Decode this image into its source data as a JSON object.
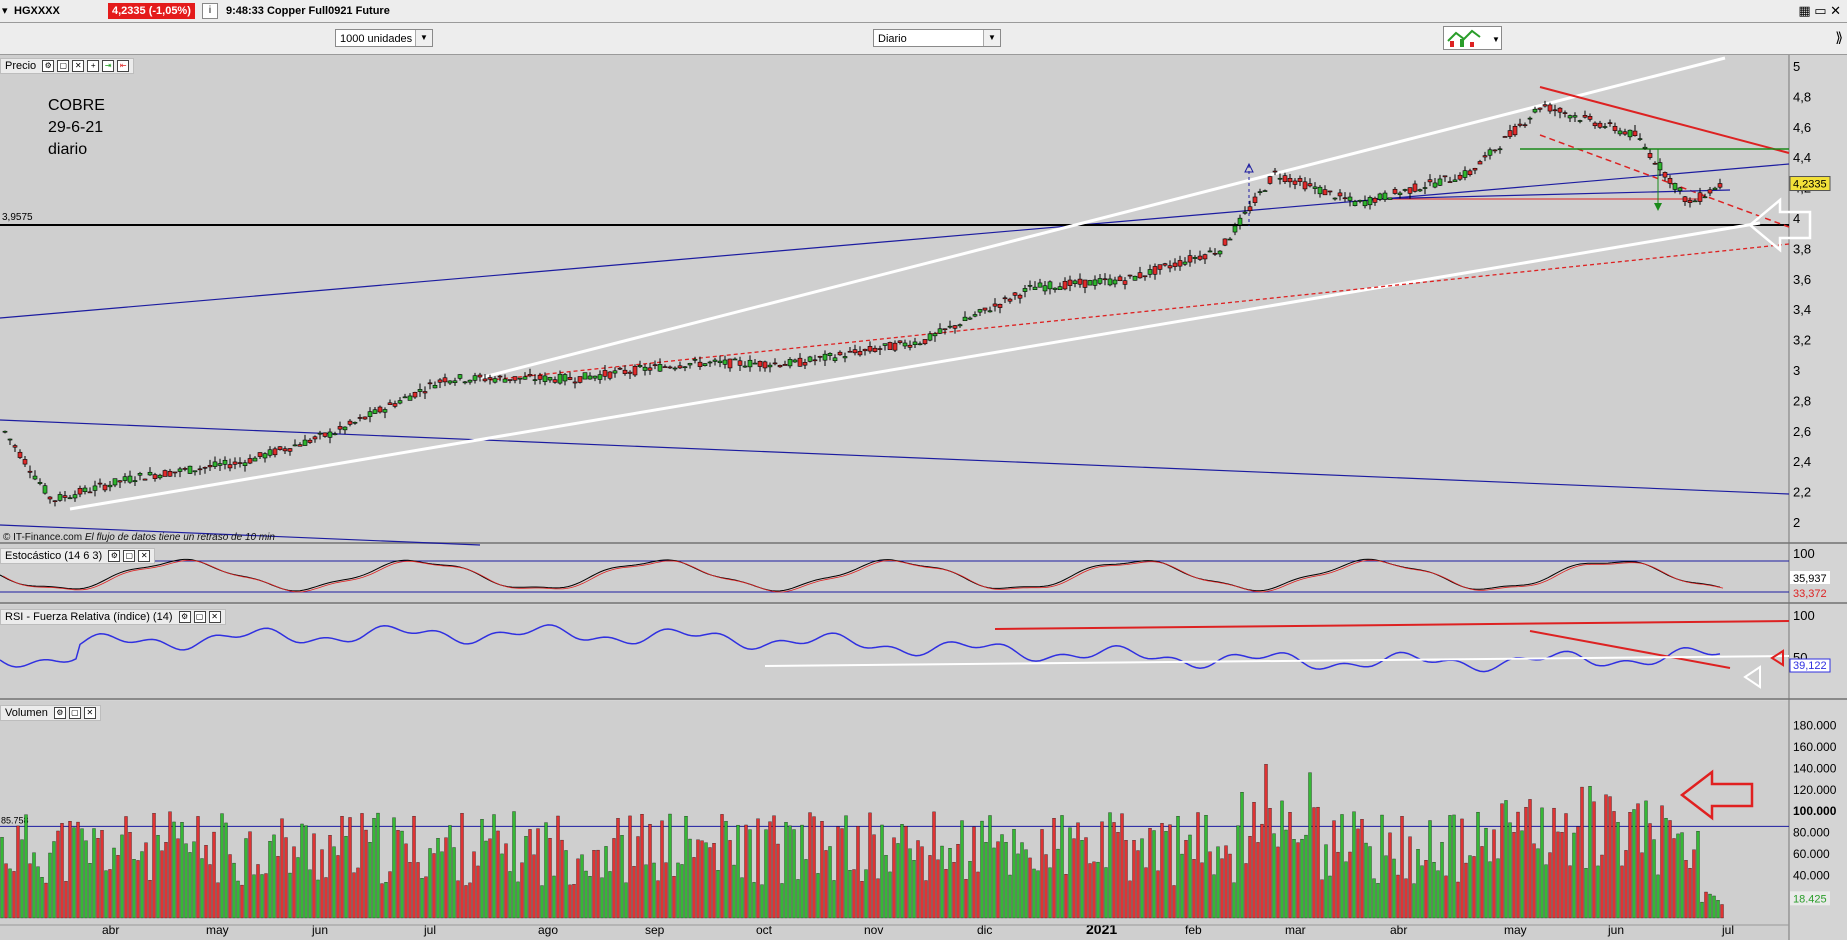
{
  "topbar": {
    "symbol": "HGXXXX",
    "price_change": "4,2335 (-1,05%)",
    "info": "i",
    "time_title": "9:48:33 Copper Full0921 Future"
  },
  "controls": {
    "units": "1000 unidades",
    "period": "Diario"
  },
  "annotation": [
    "COBRE",
    "29-6-21",
    "diario"
  ],
  "watermark": {
    "source": "© IT-Finance.com",
    "note": "El flujo de datos tiene un retraso de 10 min"
  },
  "panels": {
    "price": "Precio",
    "stoch": "Estocástico (14 6 3)",
    "rsi": "RSI - Fuerza Relativa (índice) (14)",
    "volume": "Volumen"
  },
  "chart_data": [
    {
      "type": "candlestick",
      "title": "Precio",
      "x_ticks": [
        "abr",
        "may",
        "jun",
        "jul",
        "ago",
        "sep",
        "oct",
        "nov",
        "dic",
        "2021",
        "feb",
        "mar",
        "abr",
        "may",
        "jun",
        "jul"
      ],
      "y_ticks": [
        2,
        2.2,
        2.4,
        2.6,
        2.8,
        3,
        3.2,
        3.4,
        3.6,
        3.8,
        4,
        4.2,
        4.4,
        4.6,
        4.8,
        5
      ],
      "ylim": [
        1.92,
        5.05
      ],
      "last_price": "4,2335",
      "reference_level": "3,9575",
      "series_approx": [
        {
          "date": "2020-03-10",
          "close": 2.6
        },
        {
          "date": "2020-03-23",
          "close": 2.15
        },
        {
          "date": "2020-04-15",
          "close": 2.3
        },
        {
          "date": "2020-05-15",
          "close": 2.4
        },
        {
          "date": "2020-06-10",
          "close": 2.6
        },
        {
          "date": "2020-07-10",
          "close": 2.95
        },
        {
          "date": "2020-08-15",
          "close": 2.95
        },
        {
          "date": "2020-09-15",
          "close": 3.05
        },
        {
          "date": "2020-10-15",
          "close": 3.05
        },
        {
          "date": "2020-11-20",
          "close": 3.2
        },
        {
          "date": "2020-12-20",
          "close": 3.55
        },
        {
          "date": "2021-01-15",
          "close": 3.6
        },
        {
          "date": "2021-02-10",
          "close": 3.8
        },
        {
          "date": "2021-02-25",
          "close": 4.3
        },
        {
          "date": "2021-03-20",
          "close": 4.1
        },
        {
          "date": "2021-04-20",
          "close": 4.3
        },
        {
          "date": "2021-05-10",
          "close": 4.75
        },
        {
          "date": "2021-06-05",
          "close": 4.55
        },
        {
          "date": "2021-06-20",
          "close": 4.1
        },
        {
          "date": "2021-06-29",
          "close": 4.2335
        }
      ]
    },
    {
      "type": "line",
      "title": "Estocástico (14 6 3)",
      "y_ticks": [
        100
      ],
      "values_labels": [
        "35,937",
        "33,372"
      ]
    },
    {
      "type": "line",
      "title": "RSI - Fuerza Relativa (índice) (14)",
      "y_ticks": [
        100,
        50
      ],
      "value_label": "39,122"
    },
    {
      "type": "bar",
      "title": "Volumen",
      "y_ticks": [
        "180.000",
        "160.000",
        "140.000",
        "120.000",
        "100.000",
        "80.000",
        "60.000",
        "40.000",
        "20.000"
      ],
      "ylim": [
        0,
        190000
      ],
      "reference_label": "85.758",
      "last_value_label": "18.425"
    }
  ]
}
